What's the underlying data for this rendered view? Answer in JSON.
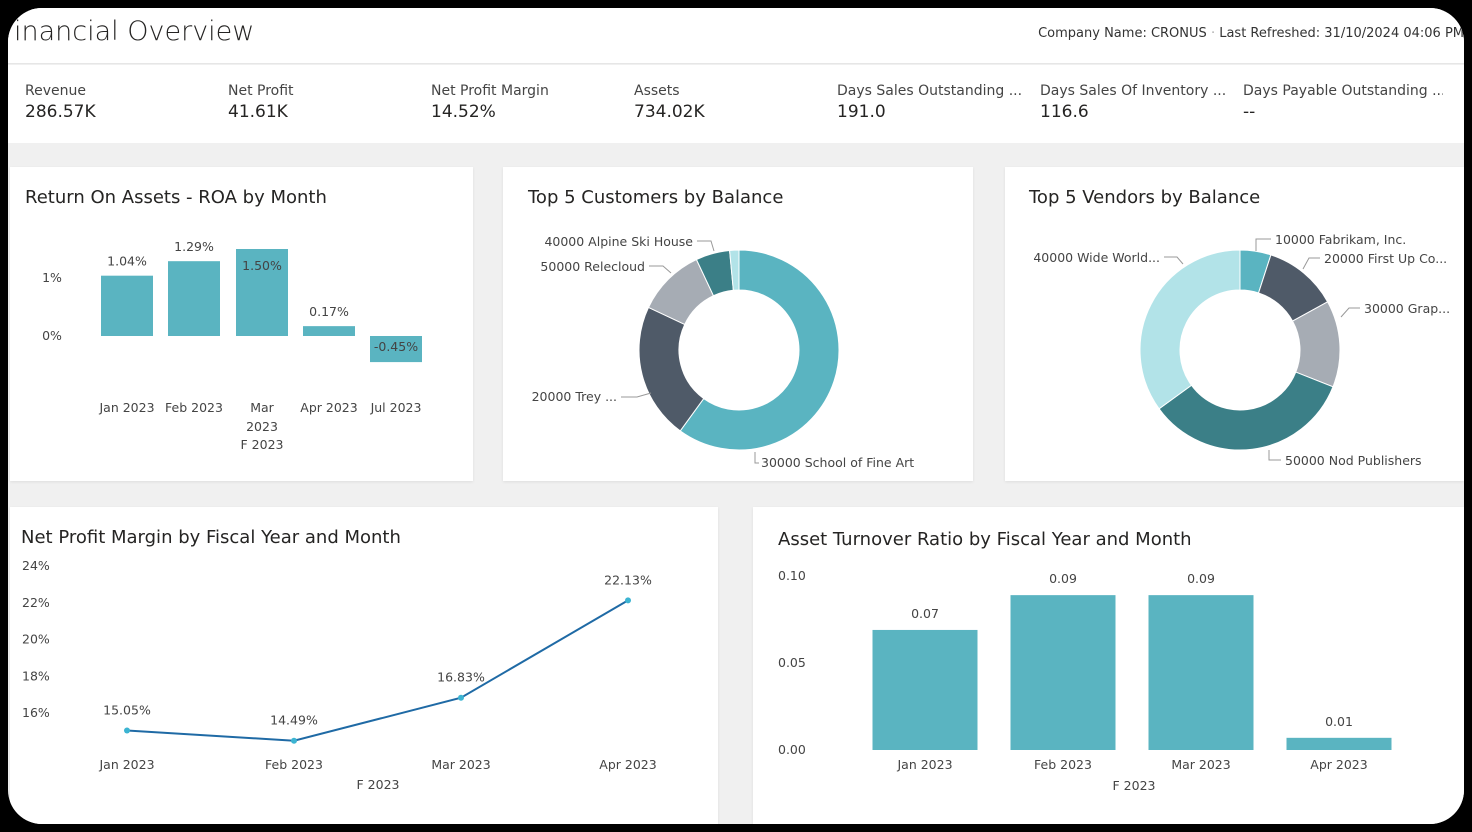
{
  "header": {
    "title": "inancial Overview",
    "company": "Company Name: CRONUS",
    "separator": "·",
    "refreshed": "Last Refreshed: 31/10/2024 04:06 PM"
  },
  "kpis": [
    {
      "label": "Revenue",
      "value": "286.57K"
    },
    {
      "label": "Net Profit",
      "value": "41.61K"
    },
    {
      "label": "Net Profit Margin",
      "value": "14.52%"
    },
    {
      "label": "Assets",
      "value": "734.02K"
    },
    {
      "label": "Days Sales Outstanding ...",
      "value": "191.0"
    },
    {
      "label": "Days Sales Of Inventory ...",
      "value": "116.6"
    },
    {
      "label": "Days Payable Outstanding ...",
      "value": "--"
    }
  ],
  "colors": {
    "teal": "#5ab4c1",
    "slate": "#4f5a68",
    "gray": "#a6acb4",
    "dark_teal": "#3b7f87",
    "light_teal": "#b2e3e8",
    "line": "#1f6aa5",
    "marker": "#3cb4d2"
  },
  "chart_data": [
    {
      "type": "bar",
      "title": "Return On Assets - ROA by Month",
      "categories": [
        "Jan 2023",
        "Feb 2023",
        "Mar 2023",
        "Apr 2023",
        "Jul 2023"
      ],
      "group_label": "F 2023",
      "values": [
        1.04,
        1.29,
        1.5,
        0.17,
        -0.45
      ],
      "data_labels": [
        "1.04%",
        "1.29%",
        "1.50%",
        "0.17%",
        "-0.45%"
      ],
      "yticks": [
        "0%",
        "1%"
      ],
      "ytick_values": [
        0,
        1
      ],
      "ylim": [
        -0.6,
        1.6
      ],
      "grid": false
    },
    {
      "type": "pie",
      "title": "Top 5 Customers by Balance",
      "donut": true,
      "slices": [
        {
          "name": "30000 School of Fine Art",
          "share": 60
        },
        {
          "name": "20000 Trey ...",
          "share": 22
        },
        {
          "name": "50000 Relecloud",
          "share": 11
        },
        {
          "name": "40000 Alpine Ski House",
          "share": 5.5
        },
        {
          "name": "",
          "share": 1.5
        }
      ]
    },
    {
      "type": "pie",
      "title": "Top 5 Vendors by Balance",
      "donut": true,
      "slices": [
        {
          "name": "10000 Fabrikam, Inc.",
          "share": 5
        },
        {
          "name": "20000 First Up Co...",
          "share": 12
        },
        {
          "name": "30000 Grap...",
          "share": 14
        },
        {
          "name": "50000 Nod Publishers",
          "share": 34
        },
        {
          "name": "40000 Wide World...",
          "share": 35
        }
      ]
    },
    {
      "type": "line",
      "title": "Net Profit Margin by Fiscal Year and Month",
      "categories": [
        "Jan 2023",
        "Feb 2023",
        "Mar 2023",
        "Apr 2023"
      ],
      "group_label": "F 2023",
      "values": [
        15.05,
        14.49,
        16.83,
        22.13
      ],
      "data_labels": [
        "15.05%",
        "14.49%",
        "16.83%",
        "22.13%"
      ],
      "yticks": [
        "16%",
        "18%",
        "20%",
        "22%",
        "24%"
      ],
      "ytick_values": [
        16,
        18,
        20,
        22,
        24
      ],
      "grid": false
    },
    {
      "type": "bar",
      "title": "Asset Turnover Ratio by Fiscal Year and Month",
      "categories": [
        "Jan 2023",
        "Feb 2023",
        "Mar 2023",
        "Apr 2023"
      ],
      "group_label": "F 2023",
      "values": [
        0.069,
        0.089,
        0.089,
        0.007
      ],
      "data_labels": [
        "0.07",
        "0.09",
        "0.09",
        "0.01"
      ],
      "yticks": [
        "0.00",
        "0.05",
        "0.10"
      ],
      "ytick_values": [
        0,
        0.05,
        0.1
      ],
      "ylim": [
        0,
        0.1
      ],
      "grid": false
    }
  ]
}
